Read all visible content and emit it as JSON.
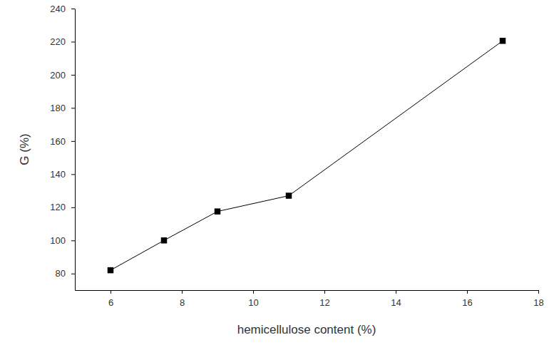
{
  "chart_data": {
    "type": "line",
    "x_label": "hemicellulose content (%)",
    "y_label": "G (%)",
    "x": [
      6,
      7.5,
      9,
      11,
      17
    ],
    "values": [
      82,
      100,
      117.5,
      127,
      220.5
    ],
    "color": "#000000",
    "marker": "square",
    "line_style": "solid",
    "xlim": [
      5,
      18
    ],
    "ylim": [
      70,
      240
    ],
    "xticks": [
      6,
      8,
      10,
      12,
      14,
      16,
      18
    ],
    "yticks": [
      80,
      100,
      120,
      140,
      160,
      180,
      200,
      220,
      240
    ]
  }
}
